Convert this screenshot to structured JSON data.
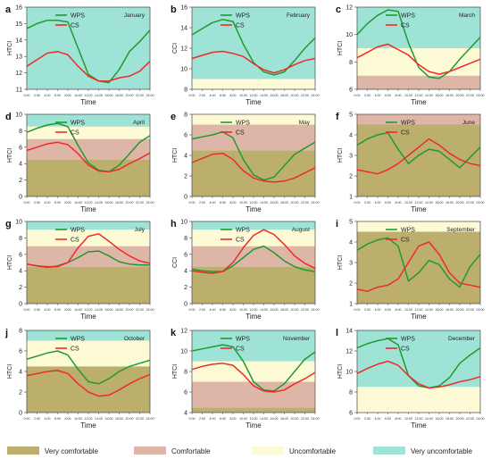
{
  "colors": {
    "very_comfortable": "#bcaf6e",
    "comfortable": "#deb6a8",
    "uncomfortable": "#fdfbd6",
    "very_uncomfortable": "#9fe3d6",
    "wps": "#1f9a2e",
    "cs": "#ee2a2a"
  },
  "legend": {
    "very_comfortable": "Very comfortable",
    "comfortable": "Comfortable",
    "uncomfortable": "Uncomfortable",
    "very_uncomfortable": "Very uncomfortable"
  },
  "chart_data": [
    {
      "type": "line",
      "letter": "a",
      "month": "January",
      "ylabel": "HTCI",
      "xlabel": "Time",
      "ylim": [
        11,
        16
      ],
      "yticks": [
        11,
        12,
        13,
        14,
        15,
        16
      ],
      "bands": [
        [
          11,
          16,
          "very_uncomfortable"
        ]
      ],
      "x": [
        "0:00",
        "2:00",
        "4:00",
        "6:00",
        "8:00",
        "10:00",
        "12:00",
        "14:00",
        "16:00",
        "18:00",
        "20:00",
        "22:00",
        "24:00"
      ],
      "series": [
        {
          "name": "WPS",
          "values": [
            14.7,
            15.0,
            15.2,
            15.2,
            15.1,
            13.5,
            11.9,
            11.5,
            11.4,
            12.2,
            13.3,
            13.9,
            14.6
          ]
        },
        {
          "name": "CS",
          "values": [
            12.4,
            12.8,
            13.2,
            13.3,
            13.1,
            12.4,
            11.8,
            11.5,
            11.5,
            11.7,
            11.8,
            12.1,
            12.7
          ]
        }
      ]
    },
    {
      "type": "line",
      "letter": "b",
      "month": "February",
      "ylabel": "CCI",
      "xlabel": "Time",
      "ylim": [
        8,
        16
      ],
      "yticks": [
        8,
        10,
        12,
        14,
        16
      ],
      "bands": [
        [
          8,
          9,
          "uncomfortable"
        ],
        [
          9,
          16,
          "very_uncomfortable"
        ]
      ],
      "x": [
        "0:00",
        "2:00",
        "4:00",
        "6:00",
        "8:00",
        "10:00",
        "12:00",
        "14:00",
        "16:00",
        "18:00",
        "20:00",
        "22:00",
        "24:00"
      ],
      "series": [
        {
          "name": "WPS",
          "values": [
            13.3,
            13.9,
            14.5,
            14.8,
            14.6,
            12.4,
            10.6,
            9.7,
            9.4,
            9.7,
            10.8,
            12.0,
            13.0
          ]
        },
        {
          "name": "CS",
          "values": [
            11.0,
            11.3,
            11.6,
            11.7,
            11.5,
            11.2,
            10.5,
            9.9,
            9.6,
            9.9,
            10.4,
            10.8,
            11.0
          ]
        }
      ]
    },
    {
      "type": "line",
      "letter": "c",
      "month": "March",
      "ylabel": "HTCI",
      "xlabel": "Time",
      "ylim": [
        6,
        12
      ],
      "yticks": [
        6,
        8,
        10,
        12
      ],
      "bands": [
        [
          6,
          7,
          "comfortable"
        ],
        [
          7,
          9,
          "uncomfortable"
        ],
        [
          9,
          12,
          "very_uncomfortable"
        ]
      ],
      "x": [
        "0:00",
        "2:00",
        "4:00",
        "6:00",
        "8:00",
        "10:00",
        "12:00",
        "14:00",
        "16:00",
        "18:00",
        "20:00",
        "22:00",
        "24:00"
      ],
      "series": [
        {
          "name": "WPS",
          "values": [
            10.0,
            10.8,
            11.4,
            11.8,
            11.7,
            9.4,
            7.6,
            6.9,
            6.8,
            7.3,
            8.2,
            9.0,
            9.8
          ]
        },
        {
          "name": "CS",
          "values": [
            8.3,
            8.7,
            9.1,
            9.3,
            8.9,
            8.5,
            7.8,
            7.3,
            7.1,
            7.3,
            7.6,
            7.9,
            8.2
          ]
        }
      ]
    },
    {
      "type": "line",
      "letter": "d",
      "month": "April",
      "ylabel": "HTCI",
      "xlabel": "Time",
      "ylim": [
        0,
        10
      ],
      "yticks": [
        0,
        2,
        4,
        6,
        8,
        10
      ],
      "bands": [
        [
          0,
          4.5,
          "very_comfortable"
        ],
        [
          4.5,
          7,
          "comfortable"
        ],
        [
          7,
          8.5,
          "uncomfortable"
        ],
        [
          8.5,
          10,
          "very_uncomfortable"
        ]
      ],
      "x": [
        "0:00",
        "2:00",
        "4:00",
        "6:00",
        "8:00",
        "10:00",
        "12:00",
        "14:00",
        "16:00",
        "18:00",
        "20:00",
        "22:00",
        "24:00"
      ],
      "series": [
        {
          "name": "WPS",
          "values": [
            7.8,
            8.3,
            8.7,
            8.9,
            8.5,
            6.2,
            4.1,
            3.2,
            3.0,
            3.8,
            5.2,
            6.6,
            7.4
          ]
        },
        {
          "name": "CS",
          "values": [
            5.6,
            6.0,
            6.4,
            6.6,
            6.3,
            5.2,
            3.8,
            3.1,
            3.0,
            3.3,
            4.0,
            4.6,
            5.3
          ]
        }
      ]
    },
    {
      "type": "line",
      "letter": "e",
      "month": "May",
      "ylabel": "HTCI",
      "xlabel": "Time",
      "ylim": [
        0,
        8
      ],
      "yticks": [
        0,
        2,
        4,
        6,
        8
      ],
      "bands": [
        [
          0,
          4.5,
          "very_comfortable"
        ],
        [
          4.5,
          7,
          "comfortable"
        ],
        [
          7,
          8,
          "uncomfortable"
        ]
      ],
      "x": [
        "0:00",
        "2:00",
        "4:00",
        "6:00",
        "8:00",
        "10:00",
        "12:00",
        "14:00",
        "16:00",
        "18:00",
        "20:00",
        "22:00",
        "24:00"
      ],
      "series": [
        {
          "name": "WPS",
          "values": [
            5.6,
            5.8,
            6.0,
            6.3,
            5.7,
            3.6,
            2.1,
            1.6,
            1.9,
            3.0,
            4.1,
            4.7,
            5.3
          ]
        },
        {
          "name": "CS",
          "values": [
            3.3,
            3.7,
            4.1,
            4.2,
            3.6,
            2.5,
            1.8,
            1.5,
            1.4,
            1.5,
            1.8,
            2.3,
            2.8
          ]
        }
      ]
    },
    {
      "type": "line",
      "letter": "f",
      "month": "June",
      "ylabel": "HTCI",
      "xlabel": "Time",
      "ylim": [
        1,
        5
      ],
      "yticks": [
        1,
        2,
        3,
        4,
        5
      ],
      "bands": [
        [
          1,
          4.5,
          "very_comfortable"
        ],
        [
          4.5,
          5,
          "comfortable"
        ]
      ],
      "x": [
        "0:00",
        "2:00",
        "4:00",
        "6:00",
        "8:00",
        "10:00",
        "12:00",
        "14:00",
        "16:00",
        "18:00",
        "20:00",
        "22:00",
        "24:00"
      ],
      "series": [
        {
          "name": "WPS",
          "values": [
            3.5,
            3.8,
            4.0,
            4.1,
            3.3,
            2.6,
            3.0,
            3.3,
            3.2,
            2.8,
            2.4,
            2.9,
            3.4
          ]
        },
        {
          "name": "CS",
          "values": [
            2.3,
            2.2,
            2.1,
            2.3,
            2.6,
            3.0,
            3.4,
            3.8,
            3.5,
            3.1,
            2.8,
            2.6,
            2.5
          ]
        }
      ]
    },
    {
      "type": "line",
      "letter": "g",
      "month": "July",
      "ylabel": "HTCI",
      "xlabel": "Time",
      "ylim": [
        0,
        10
      ],
      "yticks": [
        0,
        2,
        4,
        6,
        8,
        10
      ],
      "bands": [
        [
          0,
          4.5,
          "very_comfortable"
        ],
        [
          4.5,
          7,
          "comfortable"
        ],
        [
          7,
          9,
          "uncomfortable"
        ],
        [
          9,
          10,
          "very_uncomfortable"
        ]
      ],
      "x": [
        "0:00",
        "2:00",
        "4:00",
        "6:00",
        "8:00",
        "10:00",
        "12:00",
        "14:00",
        "16:00",
        "18:00",
        "20:00",
        "22:00",
        "24:00"
      ],
      "series": [
        {
          "name": "WPS",
          "values": [
            4.8,
            4.6,
            4.4,
            4.6,
            5.0,
            5.6,
            6.3,
            6.4,
            5.8,
            5.1,
            4.8,
            4.7,
            4.7
          ]
        },
        {
          "name": "CS",
          "values": [
            4.8,
            4.6,
            4.5,
            4.5,
            5.0,
            6.8,
            8.2,
            8.5,
            7.6,
            6.6,
            5.8,
            5.2,
            4.9
          ]
        }
      ]
    },
    {
      "type": "line",
      "letter": "h",
      "month": "August",
      "ylabel": "CCI",
      "xlabel": "Time",
      "ylim": [
        0,
        10
      ],
      "yticks": [
        0,
        2,
        4,
        6,
        8,
        10
      ],
      "bands": [
        [
          0,
          4.5,
          "very_comfortable"
        ],
        [
          4.5,
          7,
          "comfortable"
        ],
        [
          7,
          9,
          "uncomfortable"
        ],
        [
          9,
          10,
          "very_uncomfortable"
        ]
      ],
      "x": [
        "0:00",
        "2:00",
        "4:00",
        "6:00",
        "8:00",
        "10:00",
        "12:00",
        "14:00",
        "16:00",
        "18:00",
        "20:00",
        "22:00",
        "24:00"
      ],
      "series": [
        {
          "name": "WPS",
          "values": [
            4.2,
            4.0,
            3.9,
            3.9,
            4.6,
            5.6,
            6.6,
            7.0,
            6.2,
            5.2,
            4.5,
            4.1,
            3.9
          ]
        },
        {
          "name": "CS",
          "values": [
            4.0,
            3.8,
            3.7,
            3.9,
            5.0,
            6.8,
            8.3,
            9.0,
            8.4,
            7.2,
            5.8,
            4.9,
            4.3
          ]
        }
      ]
    },
    {
      "type": "line",
      "letter": "i",
      "month": "September",
      "ylabel": "HTCI",
      "xlabel": "Time",
      "ylim": [
        1,
        5
      ],
      "yticks": [
        1,
        2,
        3,
        4,
        5
      ],
      "bands": [
        [
          1,
          4.5,
          "very_comfortable"
        ],
        [
          4.5,
          5,
          "uncomfortable"
        ]
      ],
      "x": [
        "0:00",
        "2:00",
        "4:00",
        "6:00",
        "8:00",
        "10:00",
        "12:00",
        "14:00",
        "16:00",
        "18:00",
        "20:00",
        "22:00",
        "24:00"
      ],
      "series": [
        {
          "name": "WPS",
          "values": [
            3.6,
            3.9,
            4.1,
            4.2,
            3.8,
            2.1,
            2.5,
            3.1,
            2.9,
            2.2,
            1.8,
            2.8,
            3.4
          ]
        },
        {
          "name": "CS",
          "values": [
            1.7,
            1.6,
            1.8,
            1.9,
            2.2,
            3.0,
            3.8,
            4.0,
            3.4,
            2.5,
            2.0,
            1.9,
            1.8
          ]
        }
      ]
    },
    {
      "type": "line",
      "letter": "j",
      "month": "October",
      "ylabel": "HTCI",
      "xlabel": "Time",
      "ylim": [
        0,
        8
      ],
      "yticks": [
        0,
        2,
        4,
        6,
        8
      ],
      "bands": [
        [
          0,
          4.5,
          "very_comfortable"
        ],
        [
          4.5,
          7,
          "uncomfortable"
        ],
        [
          7,
          8,
          "very_uncomfortable"
        ]
      ],
      "x": [
        "0:00",
        "2:00",
        "4:00",
        "6:00",
        "8:00",
        "10:00",
        "12:00",
        "14:00",
        "16:00",
        "18:00",
        "20:00",
        "22:00",
        "24:00"
      ],
      "series": [
        {
          "name": "WPS",
          "values": [
            5.2,
            5.5,
            5.8,
            6.0,
            5.6,
            4.2,
            3.0,
            2.8,
            3.3,
            4.0,
            4.5,
            4.8,
            5.1
          ]
        },
        {
          "name": "CS",
          "values": [
            3.6,
            3.8,
            4.0,
            4.1,
            3.8,
            2.8,
            2.0,
            1.6,
            1.7,
            2.2,
            2.8,
            3.3,
            3.7
          ]
        }
      ]
    },
    {
      "type": "line",
      "letter": "k",
      "month": "November",
      "ylabel": "HTCI",
      "xlabel": "Time",
      "ylim": [
        4,
        12
      ],
      "yticks": [
        4,
        6,
        8,
        10,
        12
      ],
      "bands": [
        [
          4,
          4.5,
          "very_comfortable"
        ],
        [
          4.5,
          7,
          "comfortable"
        ],
        [
          7,
          9,
          "uncomfortable"
        ],
        [
          9,
          12,
          "very_uncomfortable"
        ]
      ],
      "x": [
        "0:00",
        "2:00",
        "4:00",
        "6:00",
        "8:00",
        "10:00",
        "12:00",
        "14:00",
        "16:00",
        "18:00",
        "20:00",
        "22:00",
        "24:00"
      ],
      "series": [
        {
          "name": "WPS",
          "values": [
            10.0,
            10.2,
            10.4,
            10.6,
            10.4,
            9.0,
            7.0,
            6.2,
            6.1,
            6.8,
            8.0,
            9.2,
            9.9
          ]
        },
        {
          "name": "CS",
          "values": [
            8.2,
            8.5,
            8.7,
            8.8,
            8.6,
            7.7,
            6.6,
            6.1,
            6.0,
            6.2,
            6.8,
            7.3,
            7.9
          ]
        }
      ]
    },
    {
      "type": "line",
      "letter": "l",
      "month": "December",
      "ylabel": "HTCI",
      "xlabel": "Time",
      "ylim": [
        6,
        14
      ],
      "yticks": [
        6,
        8,
        10,
        12,
        14
      ],
      "bands": [
        [
          6,
          8.5,
          "uncomfortable"
        ],
        [
          8.5,
          14,
          "very_uncomfortable"
        ]
      ],
      "x": [
        "0:00",
        "2:00",
        "4:00",
        "6:00",
        "8:00",
        "10:00",
        "12:00",
        "14:00",
        "16:00",
        "18:00",
        "20:00",
        "22:00",
        "24:00"
      ],
      "series": [
        {
          "name": "WPS",
          "values": [
            12.3,
            12.7,
            13.0,
            13.2,
            12.6,
            9.6,
            8.6,
            8.4,
            8.6,
            9.4,
            10.8,
            11.6,
            12.3
          ]
        },
        {
          "name": "CS",
          "values": [
            9.8,
            10.3,
            10.7,
            11.0,
            10.6,
            9.6,
            8.8,
            8.4,
            8.5,
            8.7,
            9.0,
            9.2,
            9.5
          ]
        }
      ]
    }
  ]
}
